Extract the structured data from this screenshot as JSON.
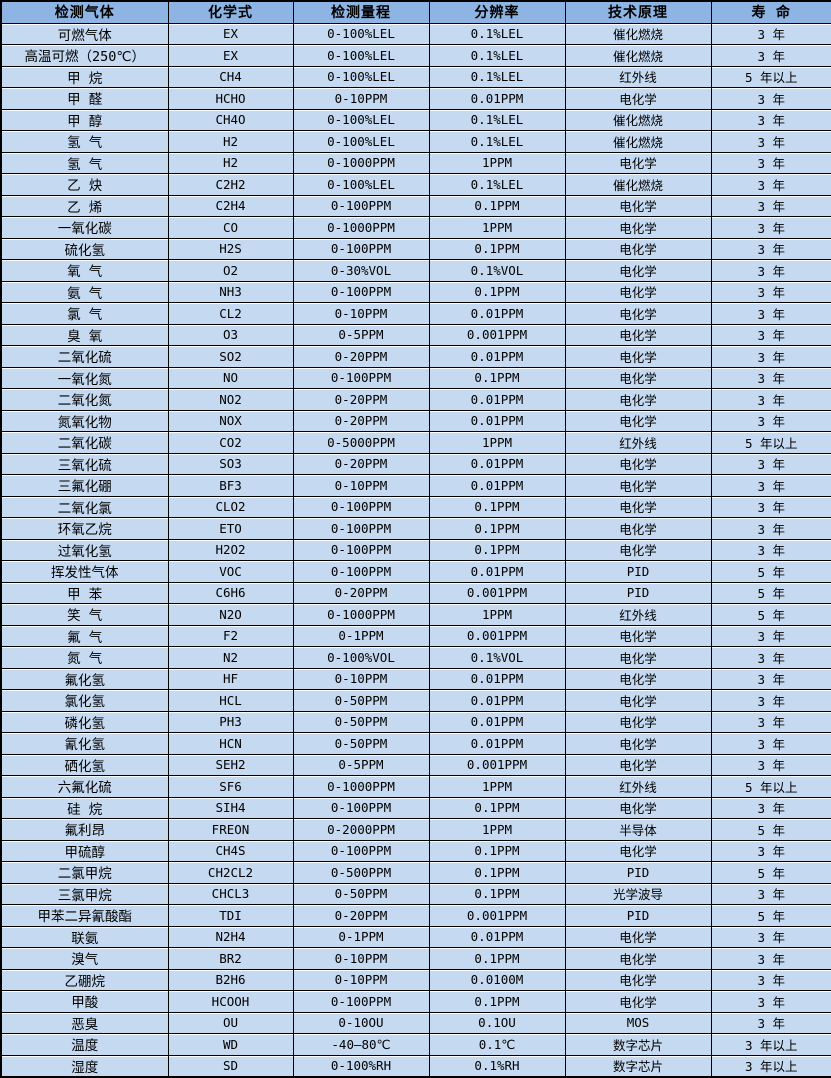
{
  "table": {
    "headers": [
      "检测气体",
      "化学式",
      "检测量程",
      "分辨率",
      "技术原理",
      "寿 命"
    ],
    "column_keys": [
      "gas-name",
      "chemical-formula",
      "detection-range",
      "resolution",
      "technology",
      "lifetime"
    ],
    "rows": [
      [
        "可燃气体",
        "EX",
        "0-100%LEL",
        "0.1%LEL",
        "催化燃烧",
        "3 年"
      ],
      [
        "高温可燃（250℃）",
        "EX",
        "0-100%LEL",
        "0.1%LEL",
        "催化燃烧",
        "3 年"
      ],
      [
        "甲 烷",
        "CH4",
        "0-100%LEL",
        "0.1%LEL",
        "红外线",
        "5 年以上"
      ],
      [
        "甲 醛",
        "HCHO",
        "0-10PPM",
        "0.01PPM",
        "电化学",
        "3 年"
      ],
      [
        "甲 醇",
        "CH4O",
        "0-100%LEL",
        "0.1%LEL",
        "催化燃烧",
        "3 年"
      ],
      [
        "氢 气",
        "H2",
        "0-100%LEL",
        "0.1%LEL",
        "催化燃烧",
        "3 年"
      ],
      [
        "氢 气",
        "H2",
        "0-1000PPM",
        "1PPM",
        "电化学",
        "3 年"
      ],
      [
        "乙 炔",
        "C2H2",
        "0-100%LEL",
        "0.1%LEL",
        "催化燃烧",
        "3 年"
      ],
      [
        "乙 烯",
        "C2H4",
        "0-100PPM",
        "0.1PPM",
        "电化学",
        "3 年"
      ],
      [
        "一氧化碳",
        "CO",
        "0-1000PPM",
        "1PPM",
        "电化学",
        "3 年"
      ],
      [
        "硫化氢",
        "H2S",
        "0-100PPM",
        "0.1PPM",
        "电化学",
        "3 年"
      ],
      [
        "氧 气",
        "O2",
        "0-30%VOL",
        "0.1%VOL",
        "电化学",
        "3 年"
      ],
      [
        "氨 气",
        "NH3",
        "0-100PPM",
        "0.1PPM",
        "电化学",
        "3 年"
      ],
      [
        "氯 气",
        "CL2",
        "0-10PPM",
        "0.01PPM",
        "电化学",
        "3 年"
      ],
      [
        "臭 氧",
        "O3",
        "0-5PPM",
        "0.001PPM",
        "电化学",
        "3 年"
      ],
      [
        "二氧化硫",
        "SO2",
        "0-20PPM",
        "0.01PPM",
        "电化学",
        "3 年"
      ],
      [
        "一氧化氮",
        "NO",
        "0-100PPM",
        "0.1PPM",
        "电化学",
        "3 年"
      ],
      [
        "二氧化氮",
        "NO2",
        "0-20PPM",
        "0.01PPM",
        "电化学",
        "3 年"
      ],
      [
        "氮氧化物",
        "NOX",
        "0-20PPM",
        "0.01PPM",
        "电化学",
        "3 年"
      ],
      [
        "二氧化碳",
        "CO2",
        "0-5000PPM",
        "1PPM",
        "红外线",
        "5 年以上"
      ],
      [
        "三氧化硫",
        "SO3",
        "0-20PPM",
        "0.01PPM",
        "电化学",
        "3 年"
      ],
      [
        "三氟化硼",
        "BF3",
        "0-10PPM",
        "0.01PPM",
        "电化学",
        "3 年"
      ],
      [
        "二氧化氯",
        "CLO2",
        "0-100PPM",
        "0.1PPM",
        "电化学",
        "3 年"
      ],
      [
        "环氧乙烷",
        "ETO",
        "0-100PPM",
        "0.1PPM",
        "电化学",
        "3 年"
      ],
      [
        "过氧化氢",
        "H2O2",
        "0-100PPM",
        "0.1PPM",
        "电化学",
        "3 年"
      ],
      [
        "挥发性气体",
        "VOC",
        "0-100PPM",
        "0.01PPM",
        "PID",
        "5 年"
      ],
      [
        "甲 苯",
        "C6H6",
        "0-20PPM",
        "0.001PPM",
        "PID",
        "5 年"
      ],
      [
        "笑 气",
        "N2O",
        "0-1000PPM",
        "1PPM",
        "红外线",
        "5 年"
      ],
      [
        "氟 气",
        "F2",
        "0-1PPM",
        "0.001PPM",
        "电化学",
        "3 年"
      ],
      [
        "氮 气",
        "N2",
        "0-100%VOL",
        "0.1%VOL",
        "电化学",
        "3 年"
      ],
      [
        "氟化氢",
        "HF",
        "0-10PPM",
        "0.01PPM",
        "电化学",
        "3 年"
      ],
      [
        "氯化氢",
        "HCL",
        "0-50PPM",
        "0.01PPM",
        "电化学",
        "3 年"
      ],
      [
        "磷化氢",
        "PH3",
        "0-50PPM",
        "0.01PPM",
        "电化学",
        "3 年"
      ],
      [
        "氰化氢",
        "HCN",
        "0-50PPM",
        "0.01PPM",
        "电化学",
        "3 年"
      ],
      [
        "硒化氢",
        "SEH2",
        "0-5PPM",
        "0.001PPM",
        "电化学",
        "3 年"
      ],
      [
        "六氟化硫",
        "SF6",
        "0-1000PPM",
        "1PPM",
        "红外线",
        "5 年以上"
      ],
      [
        "硅 烷",
        "SIH4",
        "0-100PPM",
        "0.1PPM",
        "电化学",
        "3 年"
      ],
      [
        "氟利昂",
        "FREON",
        "0-2000PPM",
        "1PPM",
        "半导体",
        "5 年"
      ],
      [
        "甲硫醇",
        "CH4S",
        "0-100PPM",
        "0.1PPM",
        "电化学",
        "3 年"
      ],
      [
        "二氯甲烷",
        "CH2CL2",
        "0-500PPM",
        "0.1PPM",
        "PID",
        "5 年"
      ],
      [
        "三氯甲烷",
        "CHCL3",
        "0-50PPM",
        "0.1PPM",
        "光学波导",
        "3 年"
      ],
      [
        "甲苯二异氰酸酯",
        "TDI",
        "0-20PPM",
        "0.001PPM",
        "PID",
        "5 年"
      ],
      [
        "联氨",
        "N2H4",
        "0-1PPM",
        "0.01PPM",
        "电化学",
        "3 年"
      ],
      [
        "溴气",
        "BR2",
        "0-10PPM",
        "0.1PPM",
        "电化学",
        "3 年"
      ],
      [
        "乙硼烷",
        "B2H6",
        "0-10PPM",
        "0.0100M",
        "电化学",
        "3 年"
      ],
      [
        "甲酸",
        "HCOOH",
        "0-100PPM",
        "0.1PPM",
        "电化学",
        "3 年"
      ],
      [
        "恶臭",
        "OU",
        "0-10OU",
        "0.1OU",
        "MOS",
        "3 年"
      ],
      [
        "温度",
        "WD",
        "-40—80℃",
        "0.1℃",
        "数字芯片",
        "3 年以上"
      ],
      [
        "湿度",
        "SD",
        "0-100%RH",
        "0.1%RH",
        "数字芯片",
        "3 年以上"
      ]
    ],
    "colors": {
      "header_bg": "#8db4e2",
      "row_bg": "#c5d9f1",
      "grid_line": "#000000",
      "inner_line": "#ffffff",
      "text": "#000000"
    }
  }
}
